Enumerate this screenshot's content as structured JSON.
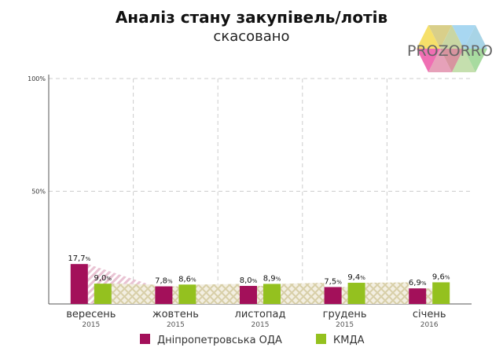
{
  "title": "Аналіз стану закупівель/лотів",
  "subtitle": "скасовано",
  "logo_text": "PROZORRO",
  "colors": {
    "dnipro": "#a3105a",
    "kmda": "#94c11f",
    "grid": "#cccccc"
  },
  "chart_data": {
    "type": "bar",
    "ylim": [
      0,
      100
    ],
    "yticks": [
      "100%",
      "50%"
    ],
    "ytick_values": [
      100,
      50
    ],
    "grid": true,
    "legend_placement": "bottom",
    "categories": [
      {
        "month": "вересень",
        "year": "2015"
      },
      {
        "month": "жовтень",
        "year": "2015"
      },
      {
        "month": "листопад",
        "year": "2015"
      },
      {
        "month": "грудень",
        "year": "2015"
      },
      {
        "month": "січень",
        "year": "2016"
      }
    ],
    "series": [
      {
        "name": "Дніпропетровська ОДА",
        "values": [
          17.7,
          7.8,
          8.0,
          7.5,
          6.9
        ],
        "labels": [
          "17,7",
          "7,8",
          "8,0",
          "7,5",
          "6,9"
        ]
      },
      {
        "name": "КМДА",
        "values": [
          9.0,
          8.6,
          8.9,
          9.4,
          9.6
        ],
        "labels": [
          "9,0",
          "8,6",
          "8,9",
          "9,4",
          "9,6"
        ]
      }
    ],
    "unit": "%"
  }
}
